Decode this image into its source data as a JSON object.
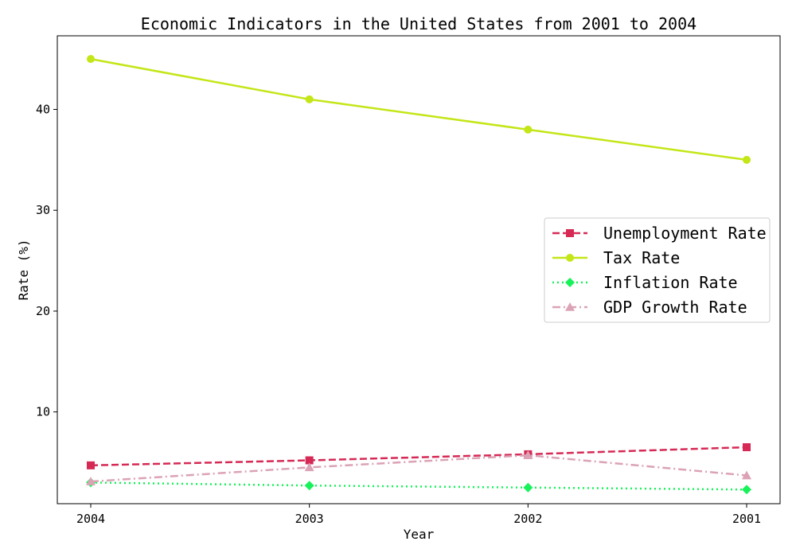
{
  "chart_data": {
    "type": "line",
    "title": "Economic Indicators in the United States from 2001 to 2004",
    "xlabel": "Year",
    "ylabel": "Rate (%)",
    "x": [
      "2004",
      "2003",
      "2002",
      "2001"
    ],
    "yticks": [
      10,
      20,
      30,
      40
    ],
    "ylim": [
      0.9,
      47.3
    ],
    "grid": false,
    "legend_position": "center-right",
    "series": [
      {
        "name": "Unemployment Rate",
        "values": [
          4.7,
          5.2,
          5.8,
          6.5
        ],
        "color": "#d62955",
        "marker": "square",
        "linestyle": "dashed"
      },
      {
        "name": "Tax Rate",
        "values": [
          45,
          41,
          38,
          35
        ],
        "color": "#c3e617",
        "marker": "circle",
        "linestyle": "solid"
      },
      {
        "name": "Inflation Rate",
        "values": [
          3.0,
          2.7,
          2.5,
          2.3
        ],
        "color": "#17f25a",
        "marker": "diamond",
        "linestyle": "dotted"
      },
      {
        "name": "GDP Growth Rate",
        "values": [
          3.1,
          4.5,
          5.7,
          3.7
        ],
        "color": "#dba3b5",
        "marker": "triangle",
        "linestyle": "dashdot"
      }
    ]
  }
}
